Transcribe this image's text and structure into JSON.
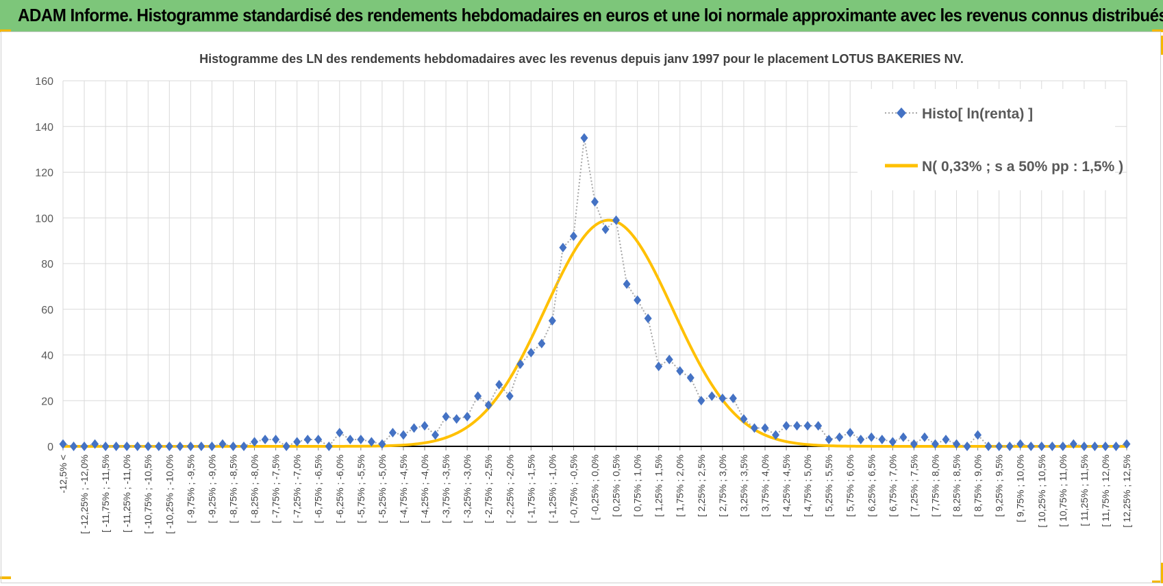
{
  "header": {
    "title": "ADAM Informe. Histogramme standardisé des rendements hebdomadaires en euros et une loi normale approximante avec les revenus connus distribués",
    "background_color": "#7dc67a",
    "accent_color": "#f5b800"
  },
  "chart_data": {
    "type": "line",
    "title": "Histogramme des LN des rendements hebdomadaires avec les revenus depuis janv 1997 pour le placement LOTUS BAKERIES NV.",
    "xlabel": "",
    "ylabel": "",
    "ylim": [
      0,
      160
    ],
    "yticks": [
      0,
      20,
      40,
      60,
      80,
      100,
      120,
      140,
      160
    ],
    "grid": true,
    "legend_position": "top-right",
    "categories": [
      "-12,5% <",
      "[ -12,25% ; -12,0%",
      "[ -11,75% ; -11,5%",
      "[ -11,25% ; -11,0%",
      "[ -10,75% ; -10,5%",
      "[ -10,25% ; -10,0%",
      "[ -9,75% ; -9,5%",
      "[ -9,25% ; -9,0%",
      "[ -8,75% ; -8,5%",
      "[ -8,25% ; -8,0%",
      "[ -7,75% ; -7,5%",
      "[ -7,25% ; -7,0%",
      "[ -6,75% ; -6,5%",
      "[ -6,25% ; -6,0%",
      "[ -5,75% ; -5,5%",
      "[ -5,25% ; -5,0%",
      "[ -4,75% ; -4,5%",
      "[ -4,25% ; -4,0%",
      "[ -3,75% ; -3,5%",
      "[ -3,25% ; -3,0%",
      "[ -2,75% ; -2,5%",
      "[ -2,25% ; -2,0%",
      "[ -1,75% ; -1,5%",
      "[ -1,25% ; -1,0%",
      "[ -0,75% ; -0,5%",
      "[ -0,25% ; 0,0%",
      "[ 0,25% ; 0,5%",
      "[ 0,75% ; 1,0%",
      "[ 1,25% ; 1,5%",
      "[ 1,75% ; 2,0%",
      "[ 2,25% ; 2,5%",
      "[ 2,75% ; 3,0%",
      "[ 3,25% ; 3,5%",
      "[ 3,75% ; 4,0%",
      "[ 4,25% ; 4,5%",
      "[ 4,75% ; 5,0%",
      "[ 5,25% ; 5,5%",
      "[ 5,75% ; 6,0%",
      "[ 6,25% ; 6,5%",
      "[ 6,75% ; 7,0%",
      "[ 7,25% ; 7,5%",
      "[ 7,75% ; 8,0%",
      "[ 8,25% ; 8,5%",
      "[ 8,75% ; 9,0%",
      "[ 9,25% ; 9,5%",
      "[ 9,75% ; 10,0%",
      "[ 10,25% ; 10,5%",
      "[ 10,75% ; 11,0%",
      "[ 11,25% ; 11,5%",
      "[ 11,75% ; 12,0%",
      "[ 12,25% ; 12,5%"
    ],
    "series": [
      {
        "name": "Histo[ ln(renta) ]",
        "style": "dotted-line-with-diamond-markers",
        "color": "#4472c4",
        "line_color": "#a6a6a6",
        "x": [
          -12.5,
          -12.25,
          -12,
          -11.75,
          -11.5,
          -11.25,
          -11,
          -10.75,
          -10.5,
          -10.25,
          -10,
          -9.75,
          -9.5,
          -9.25,
          -9,
          -8.75,
          -8.5,
          -8.25,
          -8,
          -7.75,
          -7.5,
          -7.25,
          -7,
          -6.75,
          -6.5,
          -6.25,
          -6,
          -5.75,
          -5.5,
          -5.25,
          -5,
          -4.75,
          -4.5,
          -4.25,
          -4,
          -3.75,
          -3.5,
          -3.25,
          -3,
          -2.75,
          -2.5,
          -2.25,
          -2,
          -1.75,
          -1.5,
          -1.25,
          -1,
          -0.75,
          -0.5,
          -0.25,
          0,
          0.25,
          0.5,
          0.75,
          1,
          1.25,
          1.5,
          1.75,
          2,
          2.25,
          2.5,
          2.75,
          3,
          3.25,
          3.5,
          3.75,
          4,
          4.25,
          4.5,
          4.75,
          5,
          5.25,
          5.5,
          5.75,
          6,
          6.25,
          6.5,
          6.75,
          7,
          7.25,
          7.5,
          7.75,
          8,
          8.25,
          8.5,
          8.75,
          9,
          9.25,
          9.5,
          9.75,
          10,
          10.25,
          10.5,
          10.75,
          11,
          11.25,
          11.5,
          11.75,
          12,
          12.25,
          12.5
        ],
        "values": [
          1,
          0,
          0,
          1,
          0,
          0,
          0,
          0,
          0,
          0,
          0,
          0,
          0,
          0,
          0,
          1,
          0,
          0,
          2,
          3,
          3,
          0,
          2,
          3,
          3,
          0,
          6,
          3,
          3,
          2,
          1,
          6,
          5,
          8,
          9,
          5,
          13,
          12,
          13,
          22,
          18,
          27,
          22,
          36,
          41,
          45,
          55,
          87,
          92,
          135,
          107,
          95,
          99,
          71,
          64,
          56,
          35,
          38,
          33,
          30,
          20,
          22,
          21,
          21,
          12,
          8,
          8,
          5,
          9,
          9,
          9,
          9,
          3,
          4,
          6,
          3,
          4,
          3,
          2,
          4,
          1,
          4,
          1,
          3,
          1,
          0,
          5,
          0,
          0,
          0,
          1,
          0,
          0,
          0,
          0,
          1,
          0,
          0,
          0,
          0,
          1
        ]
      },
      {
        "name": "N( 0,33% ; s a 50% pp : 1,5% )",
        "style": "smooth-line",
        "color": "#ffc000",
        "mean": 0.33,
        "std": 1.5,
        "peak": 99
      }
    ]
  }
}
